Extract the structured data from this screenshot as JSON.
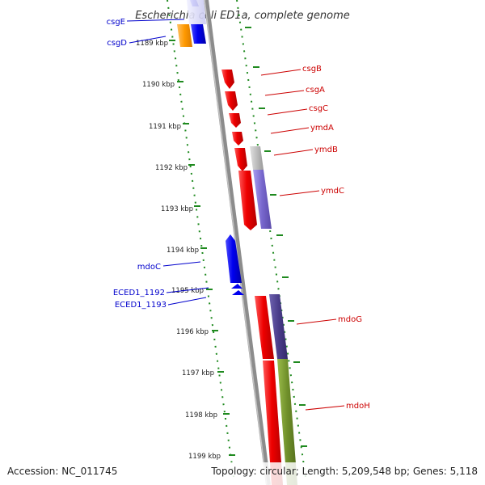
{
  "title": "Escherichia coli ED1a, complete genome",
  "footer": {
    "accession": "Accession: NC_011745",
    "summary": "Topology: circular; Length: 5,209,548 bp; Genes: 5,118"
  },
  "colors": {
    "backbone": "#8c8c8c",
    "tick": "#1f8a1f",
    "left_label": "#0000cc",
    "right_label": "#cc0000",
    "gene_red": "#ee0000",
    "gene_blue": "#0000ee",
    "gene_orange": "#ff9900",
    "gene_grey": "#b5b5b5",
    "gene_purple": "#7766cc",
    "gene_navy": "#4a3d8a",
    "gene_olive": "#6f8f2a"
  },
  "kbp_labels": [
    "1189 kbp",
    "1190 kbp",
    "1191 kbp",
    "1192 kbp",
    "1193 kbp",
    "1194 kbp",
    "1195 kbp",
    "1196 kbp",
    "1197 kbp",
    "1198 kbp",
    "1199 kbp"
  ],
  "genes_left": [
    "csgE",
    "csgD",
    "mdoC",
    "ECED1_1192",
    "ECED1_1193"
  ],
  "genes_right": [
    "csgB",
    "csgA",
    "csgC",
    "ymdA",
    "ymdB",
    "ymdC",
    "mdoG",
    "mdoH"
  ]
}
